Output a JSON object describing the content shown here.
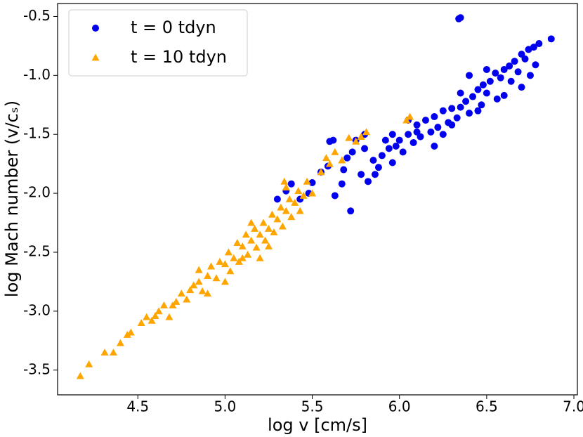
{
  "chart_data": {
    "type": "scatter",
    "xlabel": "log v  [cm/s]",
    "ylabel": "log Mach number (v/cₛ)",
    "xlim": [
      4.04,
      7.02
    ],
    "ylim": [
      -3.71,
      -0.39
    ],
    "xticks": [
      4.5,
      {
        "value": 5,
        "label": "5.0"
      },
      5.5,
      {
        "value": 6,
        "label": "6.0"
      },
      6.5,
      {
        "value": 7,
        "label": "7.0"
      }
    ],
    "yticks": [
      -0.5,
      {
        "value": -1,
        "label": "-1.0"
      },
      -1.5,
      {
        "value": -2,
        "label": "-2.0"
      },
      -2.5,
      {
        "value": -3,
        "label": "-3.0"
      },
      -3.5
    ],
    "legend": "upper left",
    "series": [
      {
        "name": "t = 0 tdyn",
        "color": "#0000ee",
        "marker": "circle",
        "x": [
          6.34,
          6.35,
          6.87,
          6.8,
          6.77,
          6.74,
          6.7,
          6.72,
          6.66,
          6.63,
          6.78,
          6.6,
          6.68,
          6.55,
          6.58,
          6.52,
          6.64,
          6.48,
          6.7,
          6.45,
          6.5,
          6.42,
          6.56,
          6.38,
          6.47,
          6.35,
          6.3,
          6.4,
          6.25,
          6.33,
          6.2,
          6.28,
          6.15,
          6.22,
          6.1,
          6.18,
          6.05,
          6.12,
          6.0,
          6.08,
          5.98,
          6.02,
          5.94,
          5.9,
          5.96,
          5.88,
          5.85,
          5.8,
          5.75,
          5.73,
          5.7,
          5.68,
          5.78,
          5.86,
          5.82,
          5.62,
          5.6,
          5.59,
          5.55,
          5.5,
          5.48,
          5.43,
          5.38,
          5.35,
          5.3,
          5.63,
          5.67,
          5.72,
          6.05,
          6.1,
          6.2,
          6.25,
          6.3,
          6.45,
          6.6,
          6.75,
          6.4,
          6.35,
          5.96,
          5.92,
          5.8,
          6.5
        ],
        "values": [
          -0.52,
          -0.51,
          -0.69,
          -0.73,
          -0.76,
          -0.78,
          -0.82,
          -0.86,
          -0.88,
          -0.92,
          -0.91,
          -0.95,
          -0.97,
          -0.98,
          -1.02,
          -1.05,
          -1.05,
          -1.08,
          -1.1,
          -1.12,
          -1.15,
          -1.18,
          -1.2,
          -1.22,
          -1.25,
          -1.27,
          -1.28,
          -1.32,
          -1.3,
          -1.36,
          -1.35,
          -1.4,
          -1.38,
          -1.44,
          -1.42,
          -1.48,
          -1.5,
          -1.52,
          -1.55,
          -1.57,
          -1.6,
          -1.65,
          -1.62,
          -1.68,
          -1.74,
          -1.78,
          -1.72,
          -1.62,
          -1.55,
          -1.65,
          -1.7,
          -1.8,
          -1.84,
          -1.84,
          -1.9,
          -1.55,
          -1.56,
          -1.77,
          -1.82,
          -1.91,
          -2.0,
          -2.05,
          -1.92,
          -1.98,
          -2.05,
          -2.02,
          -1.92,
          -2.15,
          -1.38,
          -1.48,
          -1.6,
          -1.5,
          -1.42,
          -1.3,
          -1.17,
          -1.0,
          -1.0,
          -1.15,
          -1.5,
          -1.55,
          -1.5,
          -0.95
        ]
      },
      {
        "name": "t = 10 tdyn",
        "color": "#ffa500",
        "marker": "triangle",
        "x": [
          4.17,
          4.22,
          4.31,
          4.36,
          4.4,
          4.44,
          4.46,
          4.55,
          4.58,
          4.6,
          4.62,
          4.68,
          4.7,
          4.72,
          4.75,
          4.78,
          4.8,
          4.82,
          4.85,
          4.87,
          4.9,
          4.92,
          4.95,
          4.97,
          5.0,
          5.02,
          5.03,
          5.05,
          5.07,
          5.08,
          5.1,
          5.12,
          5.13,
          5.15,
          5.17,
          5.18,
          5.2,
          5.22,
          5.23,
          5.25,
          5.27,
          5.28,
          5.3,
          5.32,
          5.33,
          5.35,
          5.37,
          5.38,
          5.4,
          5.42,
          5.45,
          5.47,
          5.5,
          5.43,
          5.55,
          5.58,
          5.6,
          5.63,
          5.67,
          5.71,
          5.75,
          5.78,
          5.81,
          6.04,
          6.06,
          5.35,
          5.34,
          5.2,
          5.0,
          4.9,
          4.65,
          4.52,
          5.1,
          4.85,
          5.25,
          5.15
        ],
        "values": [
          -3.55,
          -3.45,
          -3.35,
          -3.35,
          -3.27,
          -3.2,
          -3.18,
          -3.05,
          -3.08,
          -3.04,
          -3.0,
          -3.05,
          -2.95,
          -2.92,
          -2.85,
          -2.9,
          -2.82,
          -2.78,
          -2.75,
          -2.83,
          -2.7,
          -2.62,
          -2.72,
          -2.58,
          -2.6,
          -2.5,
          -2.66,
          -2.55,
          -2.42,
          -2.58,
          -2.45,
          -2.35,
          -2.52,
          -2.4,
          -2.3,
          -2.46,
          -2.35,
          -2.25,
          -2.4,
          -2.3,
          -2.18,
          -2.33,
          -2.22,
          -2.12,
          -2.28,
          -2.15,
          -2.05,
          -2.2,
          -2.08,
          -1.98,
          -2.02,
          -1.9,
          -2.0,
          -2.15,
          -1.82,
          -1.7,
          -1.75,
          -1.65,
          -1.72,
          -1.53,
          -1.56,
          -1.52,
          -1.48,
          -1.38,
          -1.35,
          -1.95,
          -1.9,
          -2.55,
          -2.75,
          -2.85,
          -2.95,
          -3.1,
          -2.55,
          -2.65,
          -2.45,
          -2.25
        ]
      }
    ]
  }
}
